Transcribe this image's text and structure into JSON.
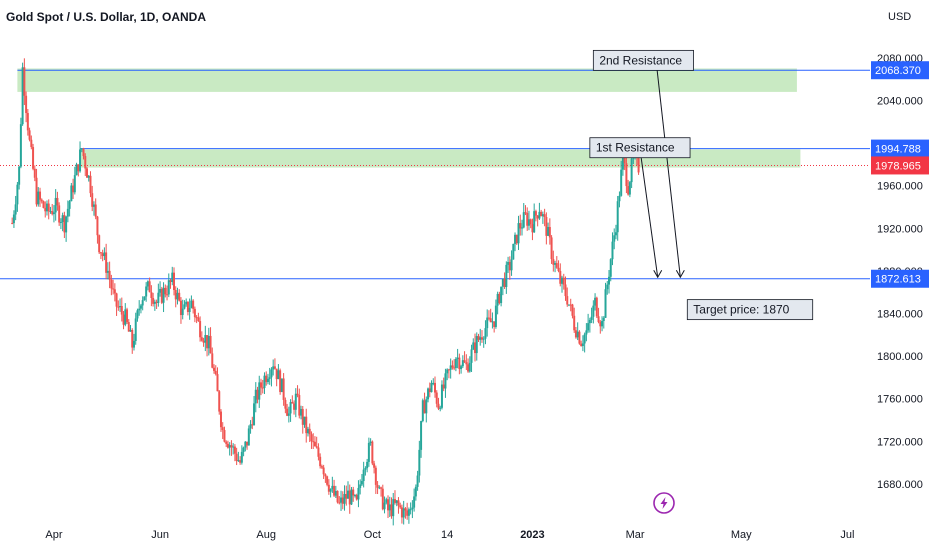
{
  "header": {
    "title": "Gold Spot / U.S. Dollar, 1D, OANDA",
    "currency": "USD"
  },
  "colors": {
    "up": "#26a69a",
    "down": "#ef5350",
    "zone": "#bfe6b8",
    "line": "#2962ff",
    "price_tag": "#f23645",
    "axis_text": "#131722",
    "label_bg": "#e3e8ef"
  },
  "watermark": {
    "icon": "lightning-icon"
  },
  "chart_data": {
    "type": "candlestick",
    "title": "Gold Spot / U.S. Dollar, 1D, OANDA",
    "ylim": [
      1648,
      2108
    ],
    "y_ticks": [
      {
        "value": 2080,
        "label": "2080.000"
      },
      {
        "value": 2040,
        "label": "2040.000"
      },
      {
        "value": 1960,
        "label": "1960.000"
      },
      {
        "value": 1920,
        "label": "1920.000"
      },
      {
        "value": 1880,
        "label": "1880.000"
      },
      {
        "value": 1840,
        "label": "1840.000"
      },
      {
        "value": 1800,
        "label": "1800.000"
      },
      {
        "value": 1760,
        "label": "1760.000"
      },
      {
        "value": 1720,
        "label": "1720.000"
      },
      {
        "value": 1680,
        "label": "1680.000"
      }
    ],
    "x_ticks": [
      "Apr",
      "Jun",
      "Aug",
      "Oct",
      "14",
      "2023",
      "Mar",
      "May",
      "Jul"
    ],
    "x_tick_days": [
      31,
      92,
      153,
      214,
      257,
      306,
      365,
      426,
      487
    ],
    "price_lines": [
      {
        "value": 2068.37,
        "label": "2068.370"
      },
      {
        "value": 1994.788,
        "label": "1994.788"
      },
      {
        "value": 1872.613,
        "label": "1872.613"
      }
    ],
    "current_price": {
      "value": 1978.965,
      "label": "1978.965"
    },
    "zones": [
      {
        "from_day": 10,
        "to_day": 458,
        "low": 2048,
        "high": 2070
      },
      {
        "from_day": 46,
        "to_day": 460,
        "low": 1977,
        "high": 1994
      }
    ],
    "annotations": [
      {
        "text": "2nd Resistance",
        "day": 341,
        "value": 2087
      },
      {
        "text": "1st Resistance",
        "day": 339,
        "value": 2005
      },
      {
        "text": "Target price: 1870",
        "day": 395,
        "value": 1853
      }
    ],
    "arrows": [
      {
        "from_day": 377,
        "from_value": 2078,
        "to_day": 391,
        "to_value": 1874
      },
      {
        "from_day": 368,
        "from_value": 1992,
        "to_day": 378,
        "to_value": 1874
      }
    ],
    "anchor_points": [
      {
        "day": 7,
        "value": 1925
      },
      {
        "day": 11,
        "value": 1975
      },
      {
        "day": 13,
        "value": 2070
      },
      {
        "day": 17,
        "value": 2000
      },
      {
        "day": 21,
        "value": 1950
      },
      {
        "day": 27,
        "value": 1935
      },
      {
        "day": 32,
        "value": 1940
      },
      {
        "day": 37,
        "value": 1925
      },
      {
        "day": 42,
        "value": 1960
      },
      {
        "day": 47,
        "value": 1995
      },
      {
        "day": 52,
        "value": 1960
      },
      {
        "day": 57,
        "value": 1905
      },
      {
        "day": 62,
        "value": 1880
      },
      {
        "day": 66,
        "value": 1850
      },
      {
        "day": 72,
        "value": 1835
      },
      {
        "day": 76,
        "value": 1810
      },
      {
        "day": 81,
        "value": 1855
      },
      {
        "day": 86,
        "value": 1865
      },
      {
        "day": 90,
        "value": 1850
      },
      {
        "day": 94,
        "value": 1860
      },
      {
        "day": 99,
        "value": 1870
      },
      {
        "day": 105,
        "value": 1840
      },
      {
        "day": 110,
        "value": 1850
      },
      {
        "day": 114,
        "value": 1830
      },
      {
        "day": 120,
        "value": 1810
      },
      {
        "day": 124,
        "value": 1775
      },
      {
        "day": 128,
        "value": 1730
      },
      {
        "day": 133,
        "value": 1715
      },
      {
        "day": 138,
        "value": 1700
      },
      {
        "day": 142,
        "value": 1720
      },
      {
        "day": 147,
        "value": 1760
      },
      {
        "day": 152,
        "value": 1780
      },
      {
        "day": 157,
        "value": 1795
      },
      {
        "day": 162,
        "value": 1770
      },
      {
        "day": 166,
        "value": 1745
      },
      {
        "day": 170,
        "value": 1760
      },
      {
        "day": 175,
        "value": 1735
      },
      {
        "day": 180,
        "value": 1715
      },
      {
        "day": 185,
        "value": 1700
      },
      {
        "day": 190,
        "value": 1675
      },
      {
        "day": 195,
        "value": 1660
      },
      {
        "day": 200,
        "value": 1670
      },
      {
        "day": 205,
        "value": 1660
      },
      {
        "day": 209,
        "value": 1700
      },
      {
        "day": 213,
        "value": 1715
      },
      {
        "day": 218,
        "value": 1670
      },
      {
        "day": 223,
        "value": 1655
      },
      {
        "day": 228,
        "value": 1660
      },
      {
        "day": 234,
        "value": 1650
      },
      {
        "day": 239,
        "value": 1675
      },
      {
        "day": 243,
        "value": 1750
      },
      {
        "day": 248,
        "value": 1775
      },
      {
        "day": 252,
        "value": 1755
      },
      {
        "day": 257,
        "value": 1780
      },
      {
        "day": 262,
        "value": 1800
      },
      {
        "day": 268,
        "value": 1790
      },
      {
        "day": 273,
        "value": 1810
      },
      {
        "day": 278,
        "value": 1825
      },
      {
        "day": 284,
        "value": 1835
      },
      {
        "day": 288,
        "value": 1865
      },
      {
        "day": 293,
        "value": 1885
      },
      {
        "day": 298,
        "value": 1920
      },
      {
        "day": 302,
        "value": 1930
      },
      {
        "day": 306,
        "value": 1925
      },
      {
        "day": 310,
        "value": 1940
      },
      {
        "day": 314,
        "value": 1920
      },
      {
        "day": 318,
        "value": 1890
      },
      {
        "day": 322,
        "value": 1870
      },
      {
        "day": 326,
        "value": 1855
      },
      {
        "day": 330,
        "value": 1830
      },
      {
        "day": 334,
        "value": 1815
      },
      {
        "day": 338,
        "value": 1825
      },
      {
        "day": 342,
        "value": 1850
      },
      {
        "day": 346,
        "value": 1830
      },
      {
        "day": 350,
        "value": 1880
      },
      {
        "day": 354,
        "value": 1925
      },
      {
        "day": 358,
        "value": 1985
      },
      {
        "day": 361,
        "value": 1960
      },
      {
        "day": 364,
        "value": 1985
      },
      {
        "day": 367,
        "value": 1978
      }
    ]
  }
}
